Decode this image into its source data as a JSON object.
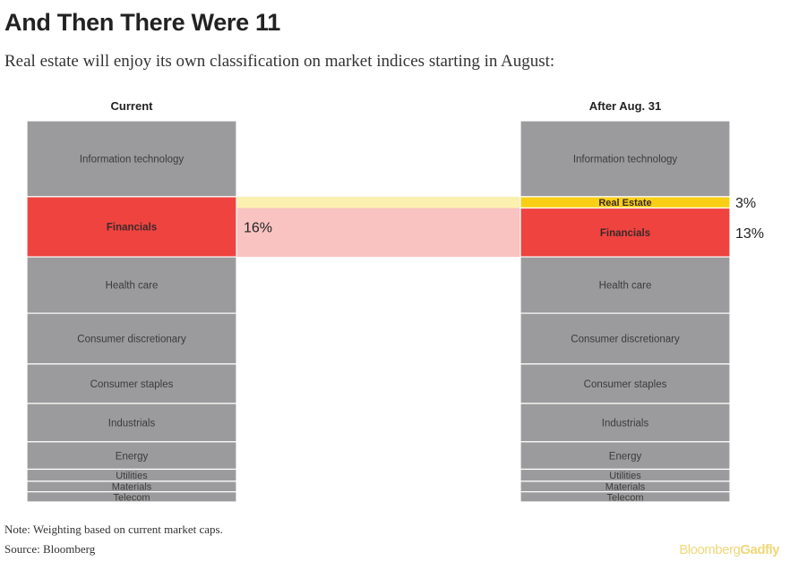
{
  "title": "And Then There Were 11",
  "subtitle": "Real estate will enjoy its own classification on market indices starting in August:",
  "chart_data": {
    "type": "stacked-bar",
    "columns": [
      {
        "label": "Current",
        "segments": [
          {
            "name": "Information technology",
            "value": 20.2,
            "highlight": null
          },
          {
            "name": "Financials",
            "value": 16,
            "highlight": "red",
            "annotation": "16%"
          },
          {
            "name": "Health care",
            "value": 15,
            "highlight": null
          },
          {
            "name": "Consumer discretionary",
            "value": 13.5,
            "highlight": null
          },
          {
            "name": "Consumer staples",
            "value": 10.5,
            "highlight": null
          },
          {
            "name": "Industrials",
            "value": 10.2,
            "highlight": null
          },
          {
            "name": "Energy",
            "value": 7.3,
            "highlight": null
          },
          {
            "name": "Utilities",
            "value": 3.2,
            "highlight": null
          },
          {
            "name": "Materials",
            "value": 2.8,
            "highlight": null
          },
          {
            "name": "Telecom",
            "value": 2.7,
            "highlight": null
          }
        ]
      },
      {
        "label": "After Aug. 31",
        "segments": [
          {
            "name": "Information technology",
            "value": 20.2,
            "highlight": null
          },
          {
            "name": "Real Estate",
            "value": 3,
            "highlight": "yellow",
            "annotation": "3%"
          },
          {
            "name": "Financials",
            "value": 13,
            "highlight": "red",
            "annotation": "13%"
          },
          {
            "name": "Health care",
            "value": 15,
            "highlight": null
          },
          {
            "name": "Consumer discretionary",
            "value": 13.5,
            "highlight": null
          },
          {
            "name": "Consumer staples",
            "value": 10.5,
            "highlight": null
          },
          {
            "name": "Industrials",
            "value": 10.2,
            "highlight": null
          },
          {
            "name": "Energy",
            "value": 7.3,
            "highlight": null
          },
          {
            "name": "Utilities",
            "value": 3.2,
            "highlight": null
          },
          {
            "name": "Materials",
            "value": 2.8,
            "highlight": null
          },
          {
            "name": "Telecom",
            "value": 2.7,
            "highlight": null
          }
        ]
      }
    ],
    "colors": {
      "default": "#9b9b9d",
      "red": "#ef4340",
      "yellow": "#f8cf14",
      "red_band": "#f9c3c1",
      "yellow_band": "#fbf0b0"
    }
  },
  "note": "Note: Weighting based on current market caps.",
  "source": "Source: Bloomberg",
  "brand": {
    "part1": "Bloomberg",
    "part2": "Gadfly"
  }
}
